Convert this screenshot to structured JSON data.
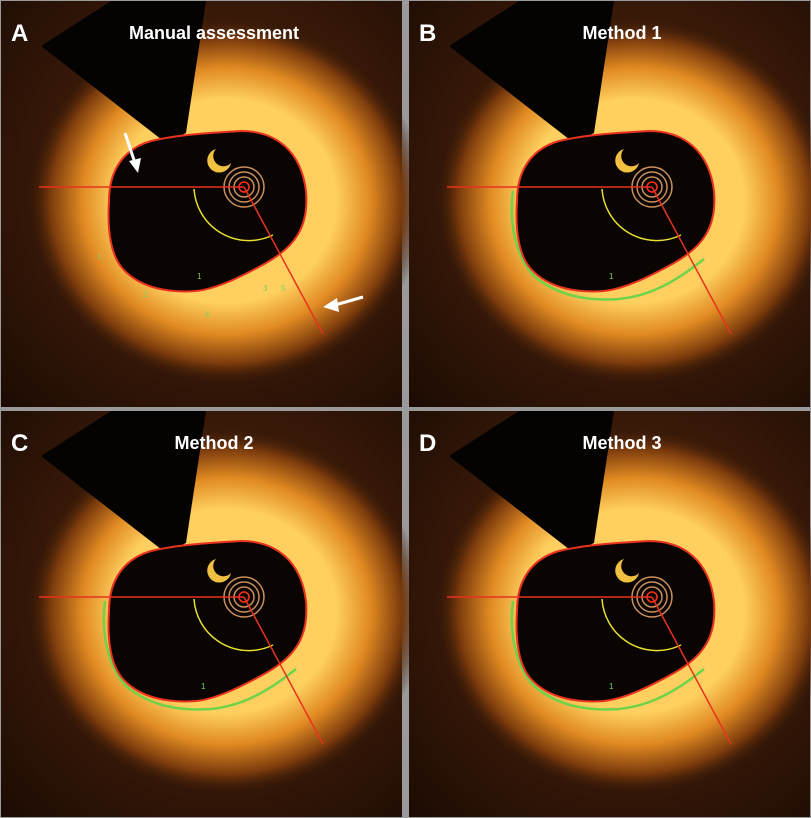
{
  "panels": [
    {
      "letter": "A",
      "title": "Manual assessment",
      "markers": [
        "1",
        "2",
        "1",
        "4",
        "3",
        "5"
      ]
    },
    {
      "letter": "B",
      "title": "Method 1",
      "markers": [
        "1"
      ]
    },
    {
      "letter": "C",
      "title": "Method 2",
      "markers": [
        "1"
      ]
    },
    {
      "letter": "D",
      "title": "Method 3",
      "markers": [
        "1"
      ]
    }
  ]
}
